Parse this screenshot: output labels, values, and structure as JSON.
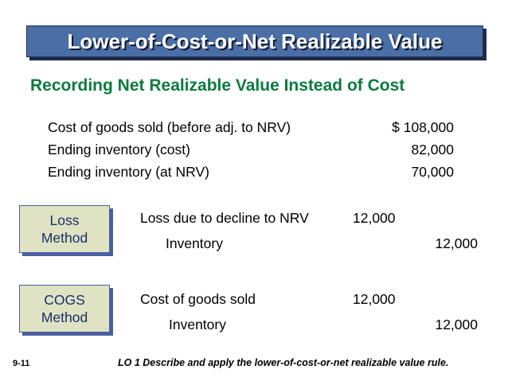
{
  "title": "Lower-of-Cost-or-Net Realizable Value",
  "subtitle": "Recording Net Realizable Value Instead of Cost",
  "info": [
    {
      "label": "Cost of goods sold (before adj. to NRV)",
      "value": "$ 108,000"
    },
    {
      "label": "Ending inventory (cost)",
      "value": "82,000"
    },
    {
      "label": "Ending inventory (at NRV)",
      "value": "70,000"
    }
  ],
  "methods": [
    {
      "line1": "Loss",
      "line2": "Method",
      "debit_account": "Loss due to decline to NRV",
      "debit_amount": "12,000",
      "credit_account": "Inventory",
      "credit_amount": "12,000"
    },
    {
      "line1": "COGS",
      "line2": "Method",
      "debit_account": "Cost of goods sold",
      "debit_amount": "12,000",
      "credit_account": "Inventory",
      "credit_amount": "12,000"
    }
  ],
  "footer": {
    "page": "9-11",
    "lo": "LO 1  Describe and apply the lower-of-cost-or-net realizable value rule."
  },
  "colors": {
    "banner": "#4a6ea6",
    "subtitle": "#0c7a3e",
    "method_box": "#dfe3c4"
  }
}
